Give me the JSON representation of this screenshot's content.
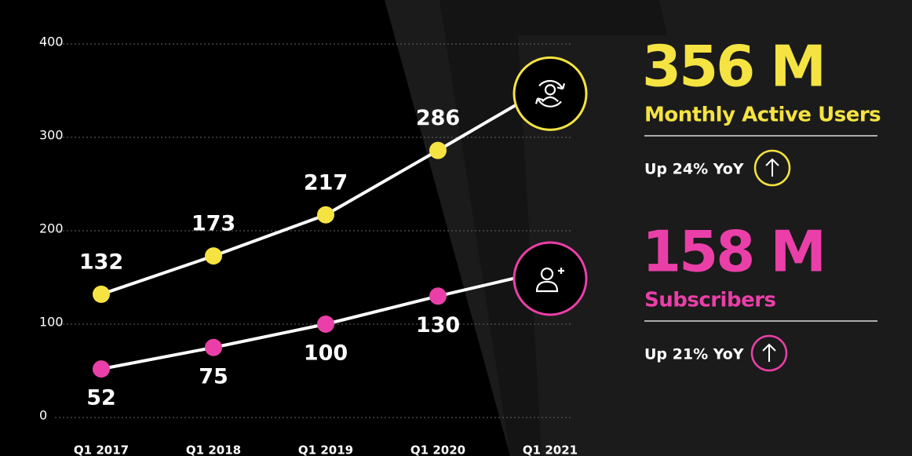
{
  "chart_data": {
    "type": "line",
    "categories": [
      "Q1 2017",
      "Q1 2018",
      "Q1 2019",
      "Q1 2020",
      "Q1 2021"
    ],
    "series": [
      {
        "name": "Monthly Active Users",
        "color": "#f5e342",
        "values": [
          132,
          173,
          217,
          286,
          356
        ],
        "value_labels": [
          "132",
          "173",
          "217",
          "286",
          "356 M"
        ],
        "change": "Up 24% YoY"
      },
      {
        "name": "Subscribers",
        "color": "#ea3fa8",
        "values": [
          52,
          75,
          100,
          130,
          158
        ],
        "value_labels": [
          "52",
          "75",
          "100",
          "130",
          "158 M"
        ],
        "change": "Up 21% YoY"
      }
    ],
    "ylim": [
      0,
      400
    ],
    "yticks": [
      0,
      100,
      200,
      300,
      400
    ],
    "grid": true
  }
}
